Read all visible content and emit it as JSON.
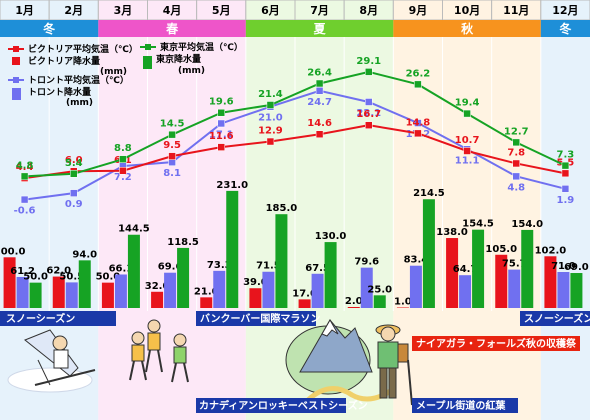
{
  "months": [
    "1月",
    "2月",
    "3月",
    "4月",
    "5月",
    "6月",
    "7月",
    "8月",
    "9月",
    "10月",
    "11月",
    "12月"
  ],
  "seasons": [
    {
      "label": "冬",
      "from": 0,
      "to": 1,
      "color": "#1e8fd8",
      "tint": "#e6f2fb"
    },
    {
      "label": "春",
      "from": 2,
      "to": 4,
      "color": "#ee55c9",
      "tint": "#fde8f7"
    },
    {
      "label": "夏",
      "from": 5,
      "to": 7,
      "color": "#6fcf2e",
      "tint": "#ecf9e2"
    },
    {
      "label": "秋",
      "from": 8,
      "to": 10,
      "color": "#f7931e",
      "tint": "#fff3e2"
    },
    {
      "label": "冬",
      "from": 11,
      "to": 11,
      "color": "#1e8fd8",
      "tint": "#e6f2fb"
    }
  ],
  "legend": {
    "victoria_temp": "ビクトリア平均気温（℃）",
    "victoria_precip_l1": "ビクトリア降水量",
    "victoria_precip_l2": "(mm)",
    "tokyo_temp": "東京平均気温（℃）",
    "tokyo_precip_l1": "東京降水量",
    "tokyo_precip_l2": "(mm)",
    "toronto_temp": "トロント平均気温（℃）",
    "toronto_precip_l1": "トロント降水量",
    "toronto_precip_l2": "(mm)"
  },
  "events": {
    "snow_season_left": "スノーシーズン",
    "snow_season_right": "スノーシーズン",
    "marathon": "バンクーバー国際マラソン",
    "niagara": "ナイアガラ・フォールズ秋の収穫祭",
    "rockies": "カナディアンロッキーベストシーズン",
    "maple": "メープル街道の紅葉"
  },
  "colors": {
    "victoria": "#e8141c",
    "tokyo": "#16a324",
    "toronto": "#7070f0",
    "banner": "#1a39a8"
  },
  "chart_data": {
    "type": "bar",
    "categories": [
      "1月",
      "2月",
      "3月",
      "4月",
      "5月",
      "6月",
      "7月",
      "8月",
      "9月",
      "10月",
      "11月",
      "12月"
    ],
    "series": [
      {
        "name": "ビクトリア平均気温（℃）",
        "kind": "line",
        "values": [
          4.4,
          6.0,
          6.1,
          9.5,
          11.6,
          12.9,
          14.6,
          16.7,
          14.8,
          10.7,
          7.8,
          5.5
        ]
      },
      {
        "name": "東京平均気温（℃）",
        "kind": "line",
        "values": [
          4.8,
          5.4,
          8.8,
          14.5,
          19.6,
          21.4,
          26.4,
          29.1,
          26.2,
          19.4,
          12.7,
          7.3
        ]
      },
      {
        "name": "トロント平均気温（℃）",
        "kind": "line",
        "values": [
          -0.6,
          0.9,
          7.2,
          8.1,
          17.1,
          21.0,
          24.7,
          22.1,
          17.2,
          11.1,
          4.8,
          1.9
        ]
      },
      {
        "name": "ビクトリア降水量",
        "kind": "bar",
        "unit": "mm",
        "values": [
          100.0,
          62.0,
          50.0,
          32.0,
          21.0,
          39.0,
          17.0,
          2.0,
          1.0,
          138.0,
          105.0,
          102.0
        ]
      },
      {
        "name": "トロント降水量",
        "kind": "bar",
        "unit": "mm",
        "values": [
          61.2,
          50.5,
          66.1,
          69.6,
          73.3,
          71.5,
          67.5,
          79.6,
          83.4,
          64.7,
          75.7,
          71.0
        ]
      },
      {
        "name": "東京降水量",
        "kind": "bar",
        "unit": "mm",
        "values": [
          50.0,
          94.0,
          144.5,
          118.5,
          231.0,
          185.0,
          130.0,
          25.0,
          214.5,
          154.5,
          154.0,
          69.0
        ]
      }
    ]
  }
}
